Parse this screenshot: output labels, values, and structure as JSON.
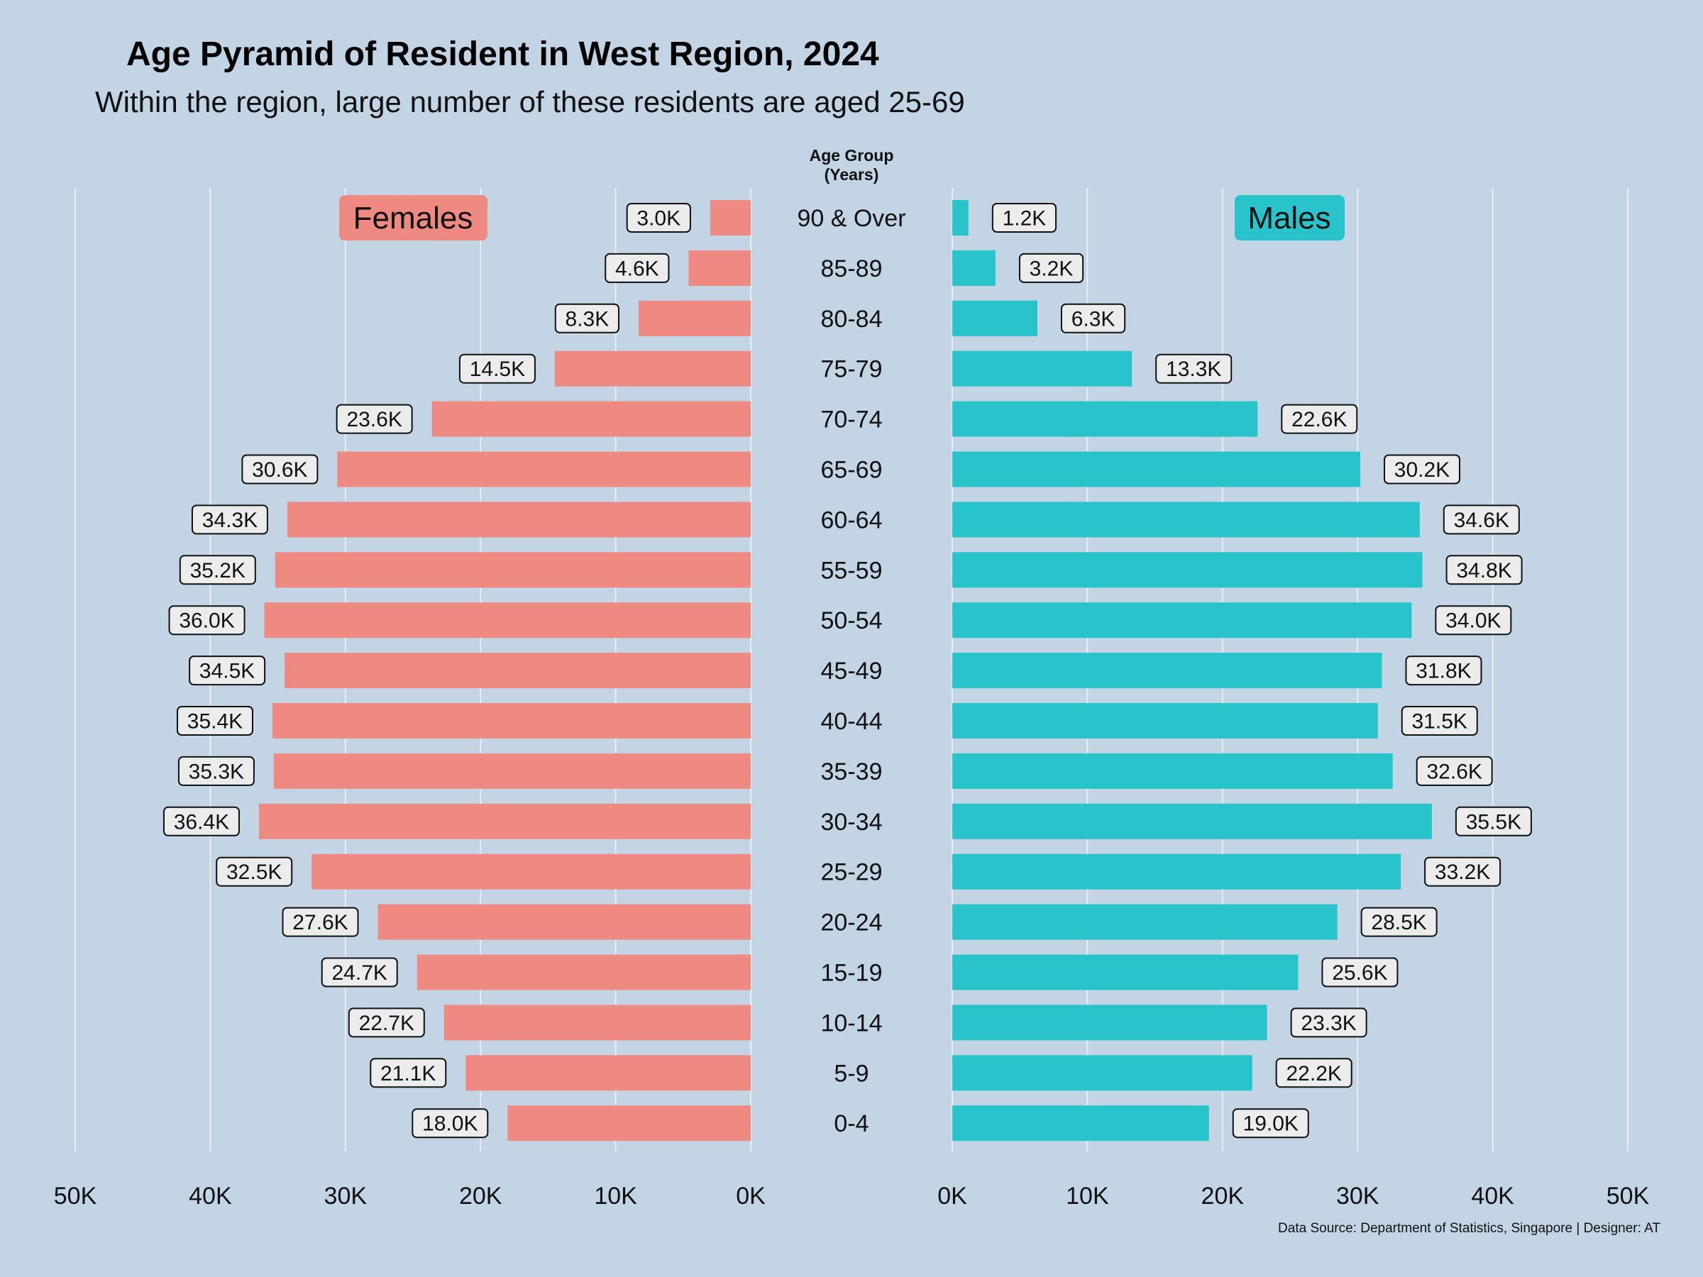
{
  "colors": {
    "background": "#c3d4e5",
    "female": "#ef8a83",
    "male": "#29c4cb",
    "label_box": "#ececec",
    "grid": "#e8eef5"
  },
  "chart_data": {
    "type": "bar",
    "orientation": "horizontal-pyramid",
    "title": "Age Pyramid of Resident in West Region, 2024",
    "subtitle": "Within the region, large number of these residents are aged 25-69",
    "center_label": [
      "Age Group",
      "(Years)"
    ],
    "caption": "Data Source: Department of Statistics, Singapore | Designer: AT",
    "xlim": [
      0,
      50000
    ],
    "x_ticks": [
      50000,
      40000,
      30000,
      20000,
      10000,
      0
    ],
    "x_tick_labels": [
      "50K",
      "40K",
      "30K",
      "20K",
      "10K",
      "0K"
    ],
    "categories": [
      "90 & Over",
      "85-89",
      "80-84",
      "75-79",
      "70-74",
      "65-69",
      "60-64",
      "55-59",
      "50-54",
      "45-49",
      "40-44",
      "35-39",
      "30-34",
      "25-29",
      "20-24",
      "15-19",
      "10-14",
      "5-9",
      "0-4"
    ],
    "series": [
      {
        "name": "Females",
        "side": "left",
        "values": [
          3000,
          4600,
          8300,
          14500,
          23600,
          30600,
          34300,
          35200,
          36000,
          34500,
          35400,
          35300,
          36400,
          32500,
          27600,
          24700,
          22700,
          21100,
          18000
        ],
        "labels": [
          "3.0K",
          "4.6K",
          "8.3K",
          "14.5K",
          "23.6K",
          "30.6K",
          "34.3K",
          "35.2K",
          "36.0K",
          "34.5K",
          "35.4K",
          "35.3K",
          "36.4K",
          "32.5K",
          "27.6K",
          "24.7K",
          "22.7K",
          "21.1K",
          "18.0K"
        ]
      },
      {
        "name": "Males",
        "side": "right",
        "values": [
          1200,
          3200,
          6300,
          13300,
          22600,
          30200,
          34600,
          34800,
          34000,
          31800,
          31500,
          32600,
          35500,
          33200,
          28500,
          25600,
          23300,
          22200,
          19000
        ],
        "labels": [
          "1.2K",
          "3.2K",
          "6.3K",
          "13.3K",
          "22.6K",
          "30.2K",
          "34.6K",
          "34.8K",
          "34.0K",
          "31.8K",
          "31.5K",
          "32.6K",
          "35.5K",
          "33.2K",
          "28.5K",
          "25.6K",
          "23.3K",
          "22.2K",
          "19.0K"
        ]
      }
    ]
  }
}
